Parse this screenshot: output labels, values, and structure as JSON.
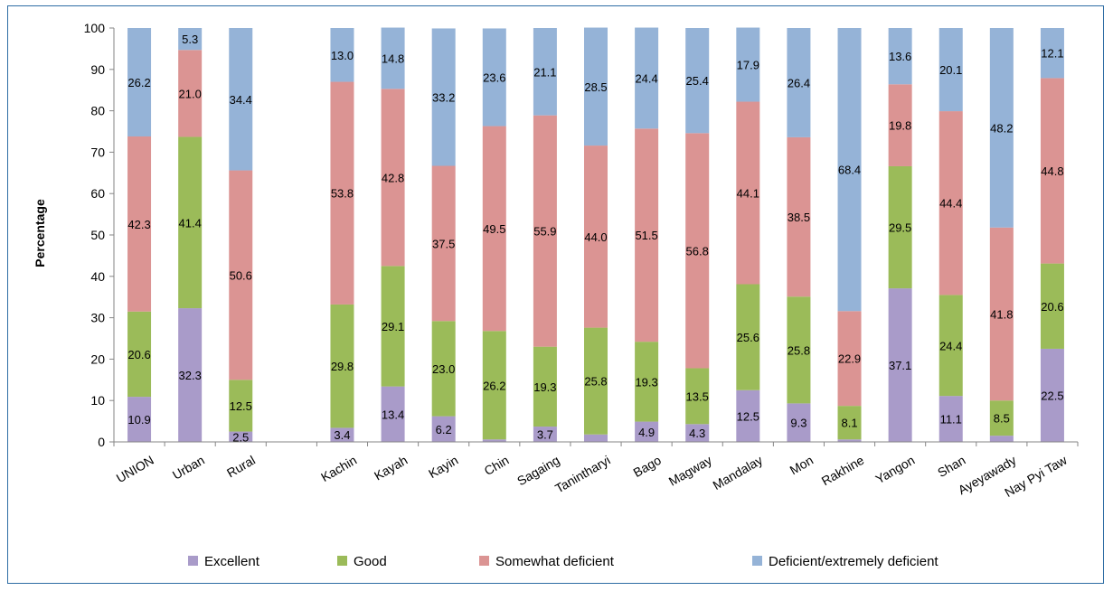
{
  "chart_data": {
    "type": "bar",
    "stacked": true,
    "ylabel": "Percentage",
    "xlabel": "",
    "ylim": [
      0,
      100
    ],
    "yticks": [
      0,
      10,
      20,
      30,
      40,
      50,
      60,
      70,
      80,
      90,
      100
    ],
    "categories": [
      "UNION",
      "Urban",
      "Rural",
      "Kachin",
      "Kayah",
      "Kayin",
      "Chin",
      "Sagaing",
      "Tanintharyi",
      "Bago",
      "Magway",
      "Mandalay",
      "Mon",
      "Rakhine",
      "Yangon",
      "Shan",
      "Ayeyawady",
      "Nay Pyi Taw"
    ],
    "gap_after_index": 2,
    "legend_position": "bottom",
    "gridlines": false,
    "series": [
      {
        "name": "Excellent",
        "color": "#a99bc9",
        "values": [
          10.9,
          32.3,
          2.5,
          3.4,
          13.4,
          6.2,
          0.6,
          3.7,
          1.8,
          4.9,
          4.3,
          12.5,
          9.3,
          0.6,
          37.1,
          11.1,
          1.5,
          22.5
        ],
        "labels": [
          "10.9",
          "32.3",
          "2.5",
          "3.4",
          "13.4",
          "6.2",
          "",
          "3.7",
          "",
          "4.9",
          "4.3",
          "12.5",
          "9.3",
          "",
          "37.1",
          "11.1",
          "",
          "22.5"
        ]
      },
      {
        "name": "Good",
        "color": "#9bbb59",
        "values": [
          20.6,
          41.4,
          12.5,
          29.8,
          29.1,
          23.0,
          26.2,
          19.3,
          25.8,
          19.3,
          13.5,
          25.6,
          25.8,
          8.1,
          29.5,
          24.4,
          8.5,
          20.6
        ],
        "labels": [
          "20.6",
          "41.4",
          "12.5",
          "29.8",
          "29.1",
          "23.0",
          "26.2",
          "19.3",
          "25.8",
          "19.3",
          "13.5",
          "25.6",
          "25.8",
          "8.1",
          "29.5",
          "24.4",
          "8.5",
          "20.6"
        ]
      },
      {
        "name": "Somewhat deficient",
        "color": "#db9493",
        "values": [
          42.3,
          21.0,
          50.6,
          53.8,
          42.8,
          37.5,
          49.5,
          55.9,
          44.0,
          51.5,
          56.8,
          44.1,
          38.5,
          22.9,
          19.8,
          44.4,
          41.8,
          44.8
        ],
        "labels": [
          "42.3",
          "21.0",
          "50.6",
          "53.8",
          "42.8",
          "37.5",
          "49.5",
          "55.9",
          "44.0",
          "51.5",
          "56.8",
          "44.1",
          "38.5",
          "22.9",
          "19.8",
          "44.4",
          "41.8",
          "44.8"
        ]
      },
      {
        "name": "Deficient/extremely deficient",
        "color": "#95b3d7",
        "values": [
          26.2,
          5.3,
          34.4,
          13.0,
          14.8,
          33.2,
          23.6,
          21.1,
          28.5,
          24.4,
          25.4,
          17.9,
          26.4,
          68.4,
          13.6,
          20.1,
          48.2,
          12.1
        ],
        "labels": [
          "26.2",
          "5.3",
          "34.4",
          "13.0",
          "14.8",
          "33.2",
          "23.6",
          "21.1",
          "28.5",
          "24.4",
          "25.4",
          "17.9",
          "26.4",
          "68.4",
          "13.6",
          "20.1",
          "48.2",
          "12.1"
        ]
      }
    ]
  }
}
